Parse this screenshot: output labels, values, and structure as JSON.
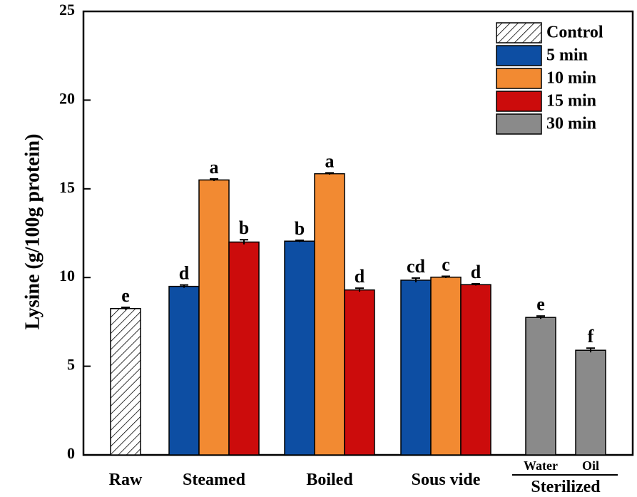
{
  "chart_data": {
    "type": "bar",
    "ylabel": "Lysine (g/100g protein)",
    "ylim": [
      0,
      25
    ],
    "yticks": [
      0,
      5,
      10,
      15,
      20,
      25
    ],
    "legend_position": "top-right",
    "colors": {
      "Control": "#ffffff",
      "5 min": "#0d4ea3",
      "10 min": "#f28a32",
      "15 min": "#cc0c0c",
      "30 min": "#8a8a8a"
    },
    "legend": [
      "Control",
      "5 min",
      "10 min",
      "15 min",
      "30 min"
    ],
    "groups": [
      {
        "label": "Raw",
        "bars": [
          {
            "series": "Control",
            "value": 8.25,
            "error": 0.07,
            "sig": "e"
          }
        ]
      },
      {
        "label": "Steamed",
        "bars": [
          {
            "series": "5 min",
            "value": 9.5,
            "error": 0.08,
            "sig": "d"
          },
          {
            "series": "10 min",
            "value": 15.5,
            "error": 0.06,
            "sig": "a"
          },
          {
            "series": "15 min",
            "value": 12.0,
            "error": 0.13,
            "sig": "b"
          }
        ]
      },
      {
        "label": "Boiled",
        "bars": [
          {
            "series": "5 min",
            "value": 12.05,
            "error": 0.05,
            "sig": "b"
          },
          {
            "series": "10 min",
            "value": 15.85,
            "error": 0.05,
            "sig": "a"
          },
          {
            "series": "15 min",
            "value": 9.3,
            "error": 0.1,
            "sig": "d"
          }
        ]
      },
      {
        "label": "Sous vide",
        "bars": [
          {
            "series": "5 min",
            "value": 9.85,
            "error": 0.12,
            "sig": "cd"
          },
          {
            "series": "10 min",
            "value": 10.02,
            "error": 0.05,
            "sig": "c"
          },
          {
            "series": "15 min",
            "value": 9.6,
            "error": 0.05,
            "sig": "d"
          }
        ]
      },
      {
        "label": "Sterilized",
        "sublabels": [
          "Water",
          "Oil"
        ],
        "bars": [
          {
            "series": "30 min",
            "value": 7.75,
            "error": 0.08,
            "sig": "e"
          },
          {
            "series": "30 min",
            "value": 5.9,
            "error": 0.12,
            "sig": "f"
          }
        ]
      }
    ]
  }
}
